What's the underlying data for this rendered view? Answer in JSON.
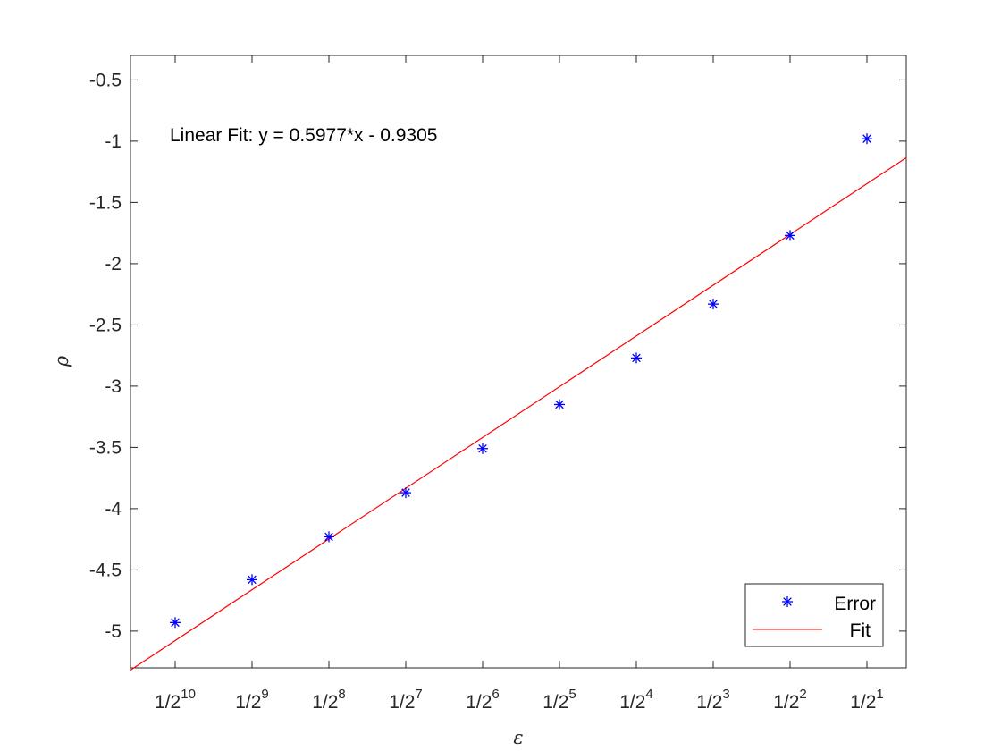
{
  "chart_data": {
    "type": "scatter",
    "x_tick_labels": [
      {
        "base": "1/2",
        "exp": "10"
      },
      {
        "base": "1/2",
        "exp": "9"
      },
      {
        "base": "1/2",
        "exp": "8"
      },
      {
        "base": "1/2",
        "exp": "7"
      },
      {
        "base": "1/2",
        "exp": "6"
      },
      {
        "base": "1/2",
        "exp": "5"
      },
      {
        "base": "1/2",
        "exp": "4"
      },
      {
        "base": "1/2",
        "exp": "3"
      },
      {
        "base": "1/2",
        "exp": "2"
      },
      {
        "base": "1/2",
        "exp": "1"
      }
    ],
    "x_exponents": [
      10,
      9,
      8,
      7,
      6,
      5,
      4,
      3,
      2,
      1
    ],
    "xlabel": "ε",
    "ylabel": "ρ",
    "ylim": [
      -5.3,
      -0.3
    ],
    "y_ticks": [
      -0.5,
      -1,
      -1.5,
      -2,
      -2.5,
      -3,
      -3.5,
      -4,
      -4.5,
      -5
    ],
    "y_tick_labels": [
      "-0.5",
      "-1",
      "-1.5",
      "-2",
      "-2.5",
      "-3",
      "-3.5",
      "-4",
      "-4.5",
      "-5"
    ],
    "series": [
      {
        "name": "Error",
        "kind": "markers",
        "marker": "asterisk",
        "color": "#0000ff",
        "y": [
          -4.93,
          -4.58,
          -4.23,
          -3.87,
          -3.51,
          -3.15,
          -2.77,
          -2.33,
          -1.77,
          -0.98
        ]
      },
      {
        "name": "Fit",
        "kind": "line",
        "color": "#ff0000",
        "slope": 0.5977,
        "intercept": -0.9305
      }
    ],
    "annotation": "Linear Fit:  y = 0.5977*x - 0.9305",
    "legend": {
      "placement": "bottom-right",
      "entries": [
        "Error",
        "Fit"
      ]
    },
    "grid": false,
    "box": true
  }
}
